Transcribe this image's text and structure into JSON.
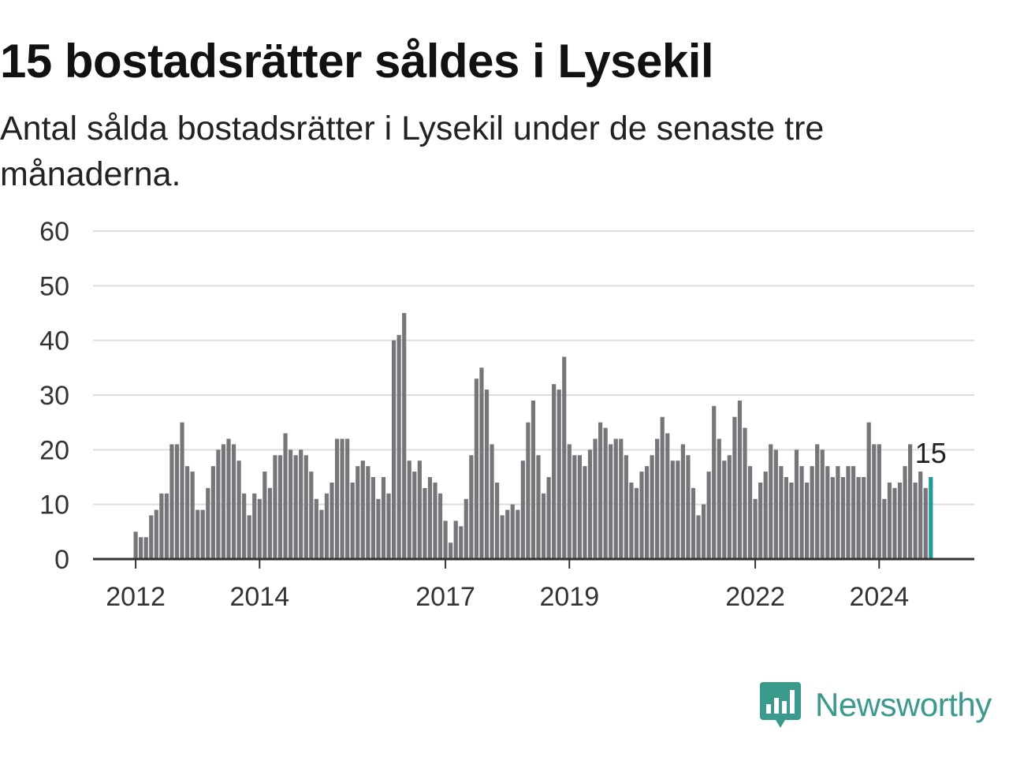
{
  "title": "15 bostadsrätter såldes i Lysekil",
  "subtitle": "Antal sålda bostadsrätter i Lysekil under de senaste tre månaderna.",
  "brand": {
    "name": "Newsworthy",
    "icon": "bar-chart-speech-bubble-icon",
    "color": "#3a9a8c"
  },
  "colors": {
    "bar": "#75757a",
    "highlight": "#1a9e96",
    "grid": "#dddddd",
    "axis": "#333333",
    "text": "#333333"
  },
  "chart_data": {
    "type": "bar",
    "x_start": "2012-01",
    "frequency": "monthly",
    "values": [
      5,
      4,
      4,
      8,
      9,
      12,
      12,
      21,
      21,
      25,
      17,
      16,
      9,
      9,
      13,
      17,
      20,
      21,
      22,
      21,
      18,
      12,
      8,
      12,
      11,
      16,
      13,
      19,
      19,
      23,
      20,
      19,
      20,
      19,
      16,
      11,
      9,
      12,
      14,
      22,
      22,
      22,
      14,
      17,
      18,
      17,
      15,
      11,
      15,
      12,
      40,
      41,
      45,
      18,
      16,
      18,
      13,
      15,
      14,
      12,
      7,
      3,
      7,
      6,
      11,
      19,
      33,
      35,
      31,
      21,
      14,
      8,
      9,
      10,
      9,
      18,
      25,
      29,
      19,
      12,
      15,
      32,
      31,
      37,
      21,
      19,
      19,
      17,
      20,
      22,
      25,
      24,
      21,
      22,
      22,
      19,
      14,
      13,
      16,
      17,
      19,
      22,
      26,
      23,
      18,
      18,
      21,
      19,
      13,
      8,
      10,
      16,
      28,
      22,
      18,
      19,
      26,
      29,
      24,
      17,
      11,
      14,
      16,
      21,
      20,
      17,
      15,
      14,
      20,
      17,
      14,
      17,
      21,
      20,
      17,
      15,
      17,
      15,
      17,
      17,
      15,
      15,
      25,
      21,
      21,
      11,
      14,
      13,
      14,
      17,
      21,
      14,
      16,
      13,
      15
    ],
    "highlight_last": true,
    "last_value_label": "15",
    "xticks": [
      {
        "date": "2012-01",
        "label": "2012"
      },
      {
        "date": "2014-01",
        "label": "2014"
      },
      {
        "date": "2017-01",
        "label": "2017"
      },
      {
        "date": "2019-01",
        "label": "2019"
      },
      {
        "date": "2022-01",
        "label": "2022"
      },
      {
        "date": "2024-01",
        "label": "2024"
      }
    ],
    "yticks": [
      0,
      10,
      20,
      30,
      40,
      50,
      60
    ],
    "ylim": [
      0,
      60
    ],
    "grid": true,
    "legend": "none",
    "xlabel": "",
    "ylabel": ""
  }
}
